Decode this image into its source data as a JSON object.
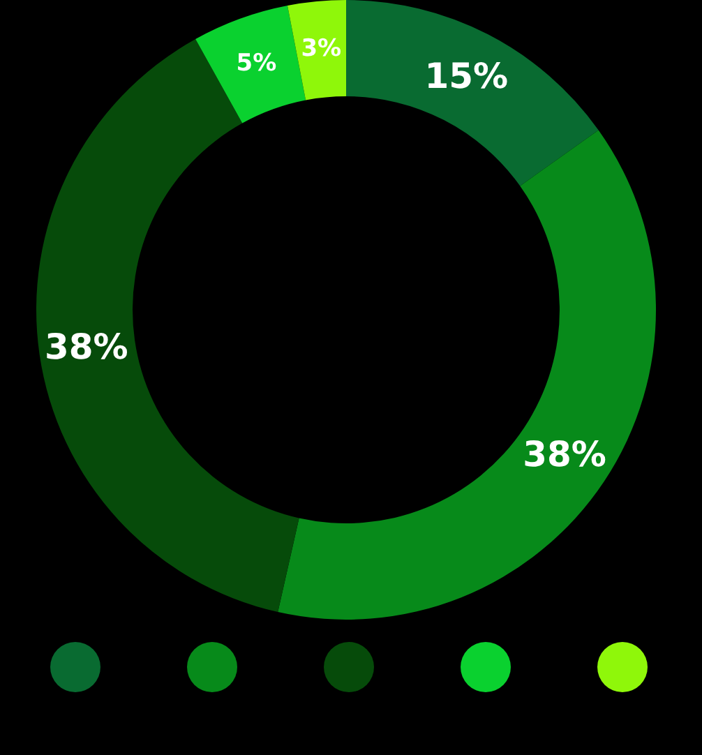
{
  "chart_data": {
    "type": "donut",
    "categories": [
      null,
      null,
      null,
      null,
      null
    ],
    "values": [
      15,
      38,
      38,
      5,
      3
    ],
    "colors": [
      "#096b31",
      "#078a1a",
      "#064b0a",
      "#0ad12f",
      "#8ff70a"
    ],
    "value_labels": [
      "15%",
      "38%",
      "38%",
      "5%",
      "3%"
    ]
  }
}
